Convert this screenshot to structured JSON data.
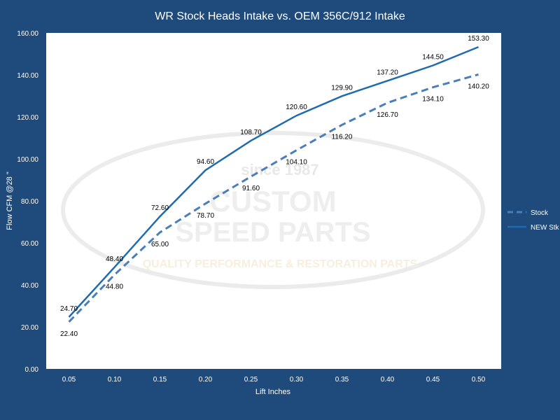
{
  "chart_data": {
    "type": "line",
    "title": "WR Stock Heads Intake vs. OEM 356C/912 Intake",
    "xlabel": "Lift Inches",
    "ylabel": "Flow CFM @28 \"",
    "categories": [
      "0.05",
      "0.10",
      "0.15",
      "0.20",
      "0.25",
      "0.30",
      "0.35",
      "0.40",
      "0.45",
      "0.50"
    ],
    "ylim": [
      0,
      160
    ],
    "yticks": [
      "0.00",
      "20.00",
      "40.00",
      "60.00",
      "80.00",
      "100.00",
      "120.00",
      "140.00",
      "160.00"
    ],
    "grid": false,
    "legend_position": "right",
    "series": [
      {
        "name": "Stock",
        "style": "dashed",
        "color": "#4a7ebb",
        "values": [
          22.4,
          44.8,
          65.0,
          78.7,
          91.6,
          104.1,
          116.2,
          126.7,
          134.1,
          140.2
        ],
        "labels": [
          "22.40",
          "44.80",
          "65.00",
          "78.70",
          "91.60",
          "104.10",
          "116.20",
          "126.70",
          "134.10",
          "140.20"
        ]
      },
      {
        "name": "NEW Stk",
        "style": "solid",
        "color": "#1f6bb0",
        "values": [
          24.7,
          48.4,
          72.6,
          94.6,
          108.7,
          120.6,
          129.9,
          137.2,
          144.5,
          153.3
        ],
        "labels": [
          "24.70",
          "48.40",
          "72.60",
          "94.60",
          "108.70",
          "120.60",
          "129.90",
          "137.20",
          "144.50",
          "153.30"
        ]
      }
    ]
  },
  "watermark": {
    "line1": "since 1987",
    "line2": "CUSTOM",
    "line3": "SPEED PARTS",
    "line4": "QUALITY PERFORMANCE & RESTORATION PARTS"
  }
}
